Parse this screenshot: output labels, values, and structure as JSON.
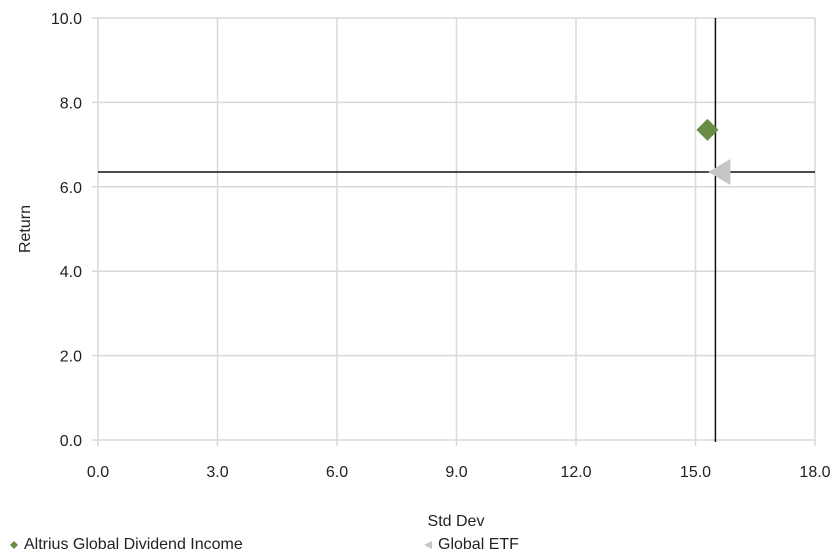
{
  "chart_data": {
    "type": "scatter",
    "xlabel": "Std Dev",
    "ylabel": "Return",
    "xlim": [
      0,
      18
    ],
    "ylim": [
      0,
      10
    ],
    "x_ticks": [
      "0.0",
      "3.0",
      "6.0",
      "9.0",
      "12.0",
      "15.0",
      "18.0"
    ],
    "y_ticks": [
      "0.0",
      "2.0",
      "4.0",
      "6.0",
      "8.0",
      "10.0"
    ],
    "grid": true,
    "legend_position": "bottom",
    "reference_lines": {
      "x": 15.5,
      "y": 6.35
    },
    "series": [
      {
        "name": "Altrius Global Dividend Income",
        "marker": "diamond",
        "color": "#6b8c45",
        "points": [
          {
            "x": 15.3,
            "y": 7.35
          }
        ]
      },
      {
        "name": "Global ETF",
        "marker": "triangle-left",
        "color": "#c6c6c6",
        "points": [
          {
            "x": 15.6,
            "y": 6.35
          }
        ]
      }
    ]
  }
}
